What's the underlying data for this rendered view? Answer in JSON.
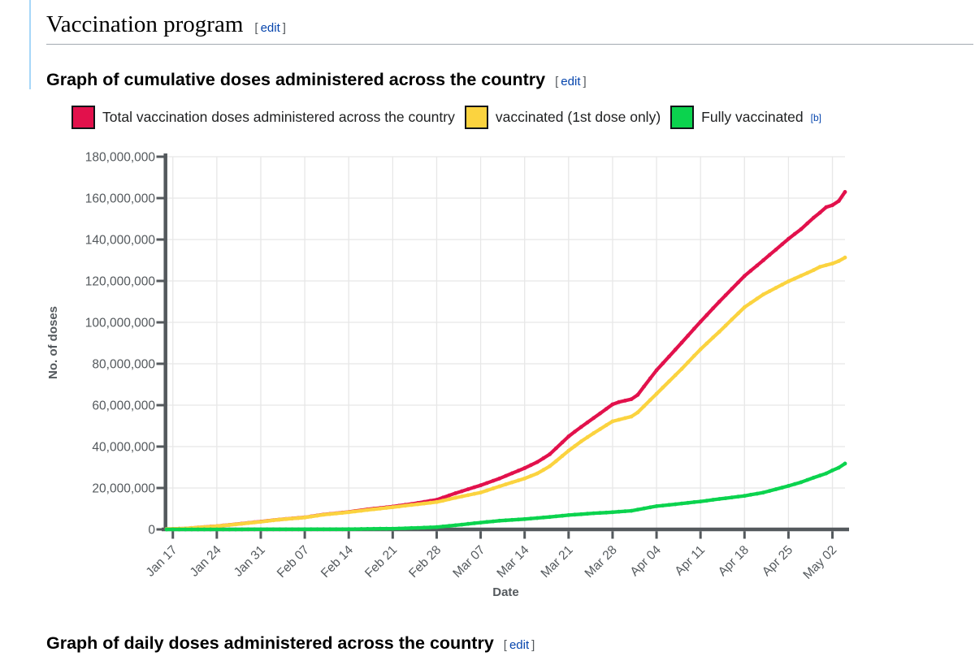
{
  "section": {
    "title": "Vaccination program"
  },
  "edit": {
    "open": "[",
    "label": "edit",
    "close": "]"
  },
  "headings": {
    "cumulative": "Graph of cumulative doses administered across the country",
    "daily": "Graph of daily doses administered across the country"
  },
  "legend": [
    {
      "label": "Total vaccination doses administered across the country",
      "color": "#e2114c",
      "sup": ""
    },
    {
      "label": "vaccinated (1st dose only)",
      "color": "#fbd33f",
      "sup": ""
    },
    {
      "label": "Fully vaccinated",
      "color": "#0bd34e",
      "sup": "[b]"
    }
  ],
  "colors": {
    "axis": "#54595d",
    "grid": "#e7e7e7",
    "link_blue": "#0645ad",
    "heading_rule": "#a2a9b1",
    "left_border_blue": "#a7d7f9",
    "swatch_border": "#101418"
  },
  "chart_data": {
    "type": "line",
    "title": "",
    "xlabel": "Date",
    "ylabel": "No. of doses",
    "ylim": [
      0,
      180000000
    ],
    "grid": true,
    "x_day0_date": "Jan 16",
    "x_range_days": [
      0,
      108
    ],
    "x_ticks": [
      {
        "day": 1,
        "label": "Jan 17"
      },
      {
        "day": 8,
        "label": "Jan 24"
      },
      {
        "day": 15,
        "label": "Jan 31"
      },
      {
        "day": 22,
        "label": "Feb 07"
      },
      {
        "day": 29,
        "label": "Feb 14"
      },
      {
        "day": 36,
        "label": "Feb 21"
      },
      {
        "day": 43,
        "label": "Feb 28"
      },
      {
        "day": 50,
        "label": "Mar 07"
      },
      {
        "day": 57,
        "label": "Mar 14"
      },
      {
        "day": 64,
        "label": "Mar 21"
      },
      {
        "day": 71,
        "label": "Mar 28"
      },
      {
        "day": 78,
        "label": "Apr 04"
      },
      {
        "day": 85,
        "label": "Apr 11"
      },
      {
        "day": 92,
        "label": "Apr 18"
      },
      {
        "day": 99,
        "label": "Apr 25"
      },
      {
        "day": 106,
        "label": "May 02"
      }
    ],
    "y_ticks": [
      {
        "value": 0,
        "label": "0"
      },
      {
        "value": 20000000,
        "label": "20,000,000"
      },
      {
        "value": 40000000,
        "label": "40,000,000"
      },
      {
        "value": 60000000,
        "label": "60,000,000"
      },
      {
        "value": 80000000,
        "label": "80,000,000"
      },
      {
        "value": 100000000,
        "label": "100,000,000"
      },
      {
        "value": 120000000,
        "label": "120,000,000"
      },
      {
        "value": 140000000,
        "label": "140,000,000"
      },
      {
        "value": 160000000,
        "label": "160,000,000"
      },
      {
        "value": 180000000,
        "label": "180,000,000"
      }
    ],
    "series": [
      {
        "name": "Total vaccination doses administered across the country",
        "color": "#e2114c",
        "points_day_value": [
          [
            0,
            190000
          ],
          [
            1,
            225000
          ],
          [
            3,
            450000
          ],
          [
            8,
            1580000
          ],
          [
            11,
            2500000
          ],
          [
            15,
            3760000
          ],
          [
            18,
            4800000
          ],
          [
            22,
            5820000
          ],
          [
            25,
            7200000
          ],
          [
            29,
            8420000
          ],
          [
            32,
            9700000
          ],
          [
            36,
            11000000
          ],
          [
            39,
            12300000
          ],
          [
            43,
            14300000
          ],
          [
            46,
            17500000
          ],
          [
            50,
            21300000
          ],
          [
            53,
            24600000
          ],
          [
            57,
            29600000
          ],
          [
            59,
            32500000
          ],
          [
            61,
            36300000
          ],
          [
            64,
            44900000
          ],
          [
            66,
            49500000
          ],
          [
            68,
            53800000
          ],
          [
            71,
            60400000
          ],
          [
            72,
            61500000
          ],
          [
            74,
            62900000
          ],
          [
            75,
            65000000
          ],
          [
            78,
            76900000
          ],
          [
            80,
            83500000
          ],
          [
            82,
            90200000
          ],
          [
            85,
            100300000
          ],
          [
            88,
            110000000
          ],
          [
            92,
            122400000
          ],
          [
            95,
            130000000
          ],
          [
            99,
            140300000
          ],
          [
            101,
            145000000
          ],
          [
            103,
            150500000
          ],
          [
            104,
            153000000
          ],
          [
            105,
            155600000
          ],
          [
            106,
            156600000
          ],
          [
            107,
            158600000
          ],
          [
            108,
            163000000
          ]
        ]
      },
      {
        "name": "vaccinated (1st dose only)",
        "color": "#fbd33f",
        "points_day_value": [
          [
            0,
            190000
          ],
          [
            1,
            220000
          ],
          [
            3,
            440000
          ],
          [
            8,
            1560000
          ],
          [
            11,
            2450000
          ],
          [
            15,
            3700000
          ],
          [
            18,
            4750000
          ],
          [
            22,
            5750000
          ],
          [
            25,
            7100000
          ],
          [
            29,
            8300000
          ],
          [
            32,
            9400000
          ],
          [
            36,
            10700000
          ],
          [
            39,
            11800000
          ],
          [
            43,
            13200000
          ],
          [
            46,
            15300000
          ],
          [
            50,
            17800000
          ],
          [
            53,
            20800000
          ],
          [
            57,
            24600000
          ],
          [
            59,
            27000000
          ],
          [
            61,
            30500000
          ],
          [
            64,
            38000000
          ],
          [
            66,
            42500000
          ],
          [
            68,
            46500000
          ],
          [
            71,
            52200000
          ],
          [
            72,
            53000000
          ],
          [
            74,
            54500000
          ],
          [
            75,
            56500000
          ],
          [
            78,
            65500000
          ],
          [
            80,
            71500000
          ],
          [
            82,
            77500000
          ],
          [
            85,
            87000000
          ],
          [
            88,
            95500000
          ],
          [
            92,
            107300000
          ],
          [
            95,
            113500000
          ],
          [
            99,
            119800000
          ],
          [
            101,
            122500000
          ],
          [
            103,
            125200000
          ],
          [
            104,
            126800000
          ],
          [
            105,
            127600000
          ],
          [
            106,
            128400000
          ],
          [
            107,
            129600000
          ],
          [
            108,
            131300000
          ]
        ]
      },
      {
        "name": "Fully vaccinated",
        "color": "#0bd34e",
        "points_day_value": [
          [
            0,
            0
          ],
          [
            13,
            20000
          ],
          [
            28,
            90000
          ],
          [
            32,
            250000
          ],
          [
            36,
            350000
          ],
          [
            40,
            750000
          ],
          [
            43,
            1100000
          ],
          [
            46,
            2000000
          ],
          [
            50,
            3300000
          ],
          [
            53,
            4200000
          ],
          [
            57,
            5000000
          ],
          [
            61,
            6000000
          ],
          [
            64,
            6900000
          ],
          [
            68,
            7800000
          ],
          [
            71,
            8300000
          ],
          [
            74,
            9000000
          ],
          [
            78,
            11200000
          ],
          [
            82,
            12500000
          ],
          [
            85,
            13500000
          ],
          [
            88,
            14700000
          ],
          [
            92,
            16200000
          ],
          [
            95,
            17800000
          ],
          [
            99,
            21000000
          ],
          [
            101,
            22800000
          ],
          [
            103,
            25000000
          ],
          [
            105,
            27000000
          ],
          [
            106,
            28500000
          ],
          [
            107,
            29800000
          ],
          [
            108,
            31800000
          ]
        ]
      }
    ]
  }
}
